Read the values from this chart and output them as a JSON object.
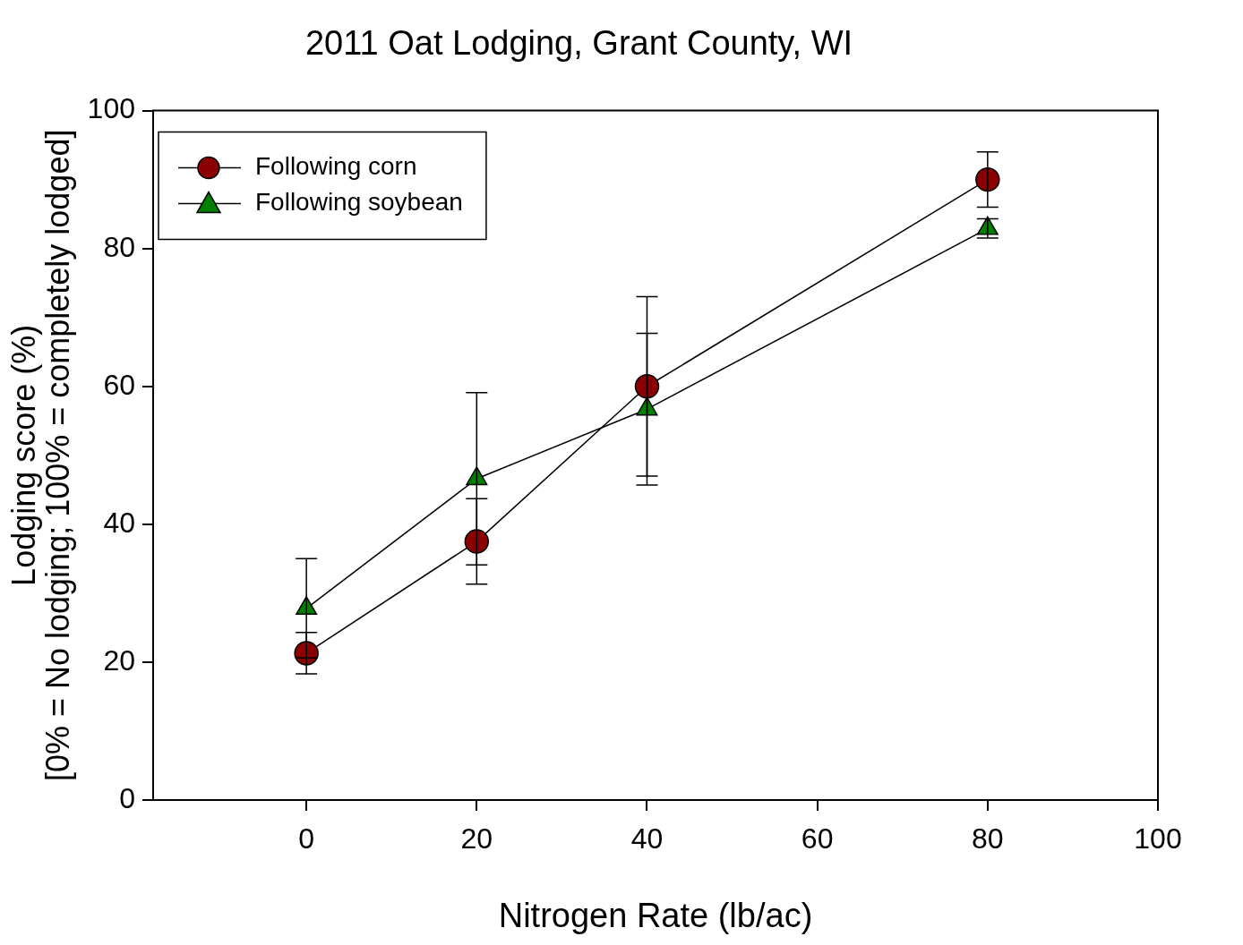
{
  "chart_data": {
    "type": "line",
    "title": "2011 Oat Lodging, Grant County, WI",
    "xlabel": "Nitrogen Rate (lb/ac)",
    "ylabel": "Lodging score (%)\n[0% = No lodging; 100% = completely lodged]",
    "x": [
      0,
      20,
      40,
      80
    ],
    "series": [
      {
        "name": "Following corn",
        "color": "#8b0000",
        "marker": "circle",
        "values": [
          21.3,
          37.5,
          60,
          90
        ],
        "errors": [
          3,
          6.2,
          13,
          4
        ]
      },
      {
        "name": "Following soybean",
        "color": "#008000",
        "marker": "triangle",
        "values": [
          27.8,
          46.6,
          56.7,
          82.9
        ],
        "errors": [
          7.2,
          12.5,
          11,
          1.4
        ]
      }
    ],
    "xlim": [
      -18,
      100
    ],
    "xticks": [
      0,
      20,
      40,
      60,
      80,
      100
    ],
    "ylim": [
      0,
      100
    ],
    "yticks": [
      0,
      20,
      40,
      60,
      80,
      100
    ],
    "grid": false,
    "legend": "top left",
    "line_style": "solid"
  }
}
